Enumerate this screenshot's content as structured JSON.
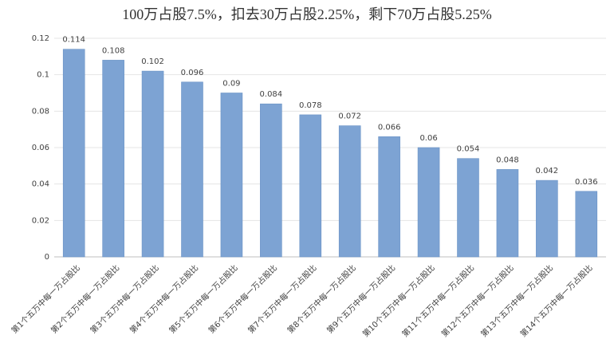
{
  "chart_data": {
    "type": "bar",
    "title": "100万占股7.5%，扣去30万占股2.25%，剩下70万占股5.25%",
    "categories": [
      "第1个五万中每一万占股比",
      "第2个五万中每一万占股比",
      "第3个五万中每一万占股比",
      "第4个五万中每一万占股比",
      "第5个五万中每一万占股比",
      "第6个五万中每一万占股比",
      "第7个五万中每一万占股比",
      "第8个五万中每一万占股比",
      "第9个五万中每一万占股比",
      "第10个五万中每一万占股比",
      "第11个五万中每一万占股比",
      "第12个五万中每一万占股比",
      "第13个五万中每一万占股比",
      "第14个五万中每一万占股比"
    ],
    "values": [
      0.114,
      0.108,
      0.102,
      0.096,
      0.09,
      0.084,
      0.078,
      0.072,
      0.066,
      0.06,
      0.054,
      0.048,
      0.042,
      0.036
    ],
    "color": "#7da3d3",
    "ylim": [
      0,
      0.12
    ],
    "yticks": [
      0,
      0.02,
      0.04,
      0.06,
      0.08,
      0.1,
      0.12
    ],
    "grid": true
  }
}
